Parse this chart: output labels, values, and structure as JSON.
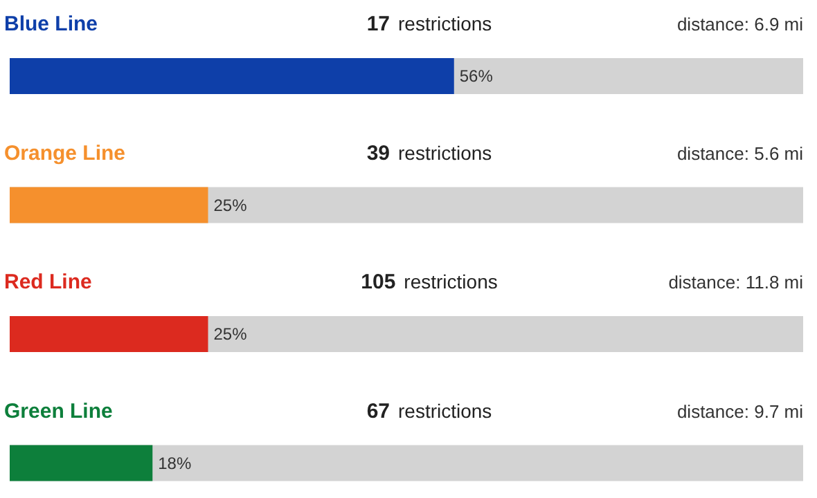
{
  "chart_data": {
    "type": "bar",
    "orientation": "horizontal",
    "categories": [
      "Blue Line",
      "Orange Line",
      "Red Line",
      "Green Line"
    ],
    "values": [
      56,
      25,
      25,
      18
    ],
    "colors": [
      "#0e3fa9",
      "#f5902d",
      "#dc2a1f",
      "#0d7f3b"
    ],
    "value_labels": [
      "56%",
      "25%",
      "25%",
      "18%"
    ],
    "xlim": [
      0,
      100
    ],
    "tick_labels": false,
    "annotations": [
      "17 restrictions",
      "distance: 6.9 mi",
      "39 restrictions",
      "distance: 5.6 mi",
      "105 restrictions",
      "distance: 11.8 mi",
      "67 restrictions",
      "distance: 9.7 mi"
    ]
  }
}
